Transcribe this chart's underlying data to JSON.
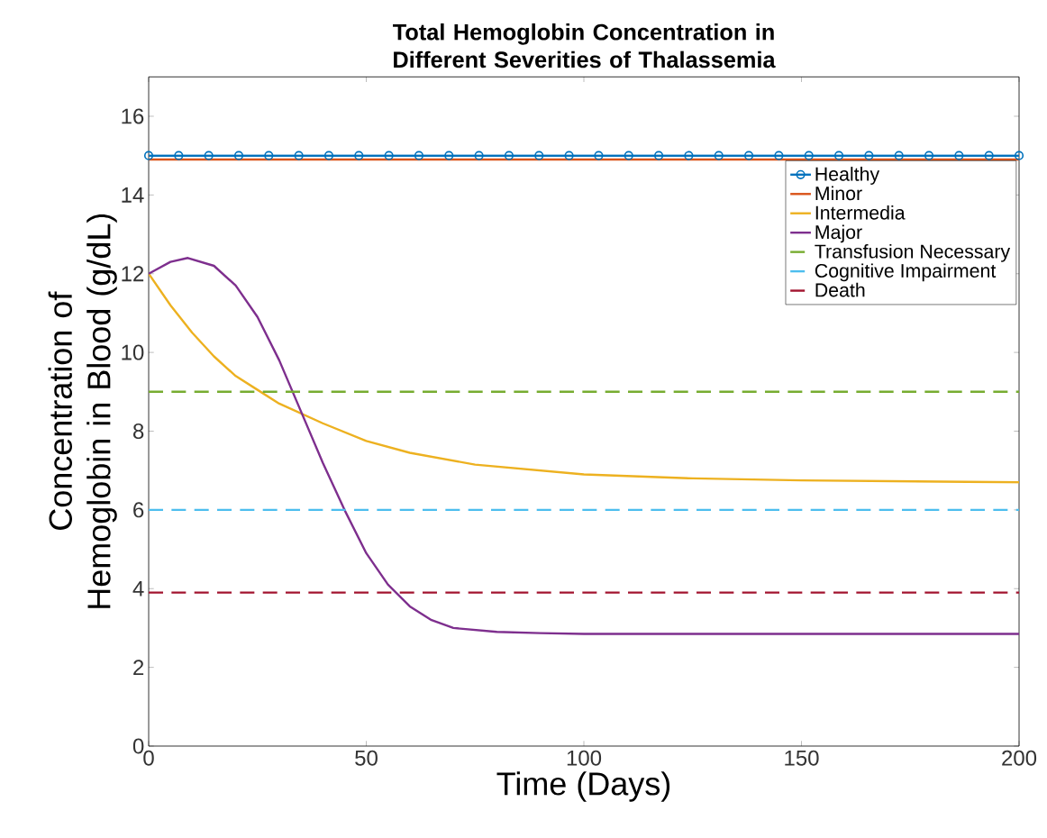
{
  "chart_data": {
    "type": "line",
    "title": "Total Hemoglobin Concentration in Different Severities of Thalassemia",
    "xlabel": "Time (Days)",
    "ylabel": "Concentration of Hemoglobin in Blood (g/dL)",
    "xlim": [
      0,
      200
    ],
    "ylim": [
      0,
      17
    ],
    "xticks": [
      0,
      50,
      100,
      150,
      200
    ],
    "yticks": [
      0,
      2,
      4,
      6,
      8,
      10,
      12,
      14,
      16
    ],
    "legend": "top right",
    "series": [
      {
        "name": "Healthy",
        "color": "#0072bd",
        "marker": "circle",
        "x": [
          0,
          6.9,
          13.8,
          20.7,
          27.6,
          34.5,
          41.4,
          48.3,
          55.2,
          62.1,
          69.0,
          75.9,
          82.8,
          89.7,
          96.6,
          103.4,
          110.3,
          117.2,
          124.1,
          131.0,
          137.9,
          144.8,
          151.7,
          158.6,
          165.5,
          172.4,
          179.3,
          186.2,
          193.1,
          200
        ],
        "values": [
          15,
          15,
          15,
          15,
          15,
          15,
          15,
          15,
          15,
          15,
          15,
          15,
          15,
          15,
          15,
          15,
          15,
          15,
          15,
          15,
          15,
          15,
          15,
          15,
          15,
          15,
          15,
          15,
          15,
          15
        ]
      },
      {
        "name": "Minor",
        "color": "#d95319",
        "x": [
          0,
          200
        ],
        "values": [
          14.9,
          14.9
        ]
      },
      {
        "name": "Intermedia",
        "color": "#edb120",
        "x": [
          0,
          5,
          10,
          15,
          20,
          25,
          30,
          40,
          50,
          60,
          75,
          100,
          125,
          150,
          200
        ],
        "values": [
          12.0,
          11.2,
          10.5,
          9.9,
          9.4,
          9.05,
          8.7,
          8.2,
          7.75,
          7.45,
          7.15,
          6.9,
          6.8,
          6.75,
          6.7
        ]
      },
      {
        "name": "Major",
        "color": "#7e2f8e",
        "x": [
          0,
          5,
          9,
          15,
          20,
          25,
          30,
          35,
          40,
          45,
          50,
          55,
          60,
          65,
          70,
          80,
          90,
          100,
          150,
          200
        ],
        "values": [
          12.0,
          12.3,
          12.4,
          12.2,
          11.7,
          10.9,
          9.8,
          8.5,
          7.2,
          6.0,
          4.9,
          4.1,
          3.55,
          3.2,
          3.0,
          2.9,
          2.87,
          2.85,
          2.85,
          2.85
        ]
      },
      {
        "name": "Transfusion Necessary",
        "color": "#77ac30",
        "line_style": "dashed",
        "x": [
          0,
          200
        ],
        "values": [
          9,
          9
        ]
      },
      {
        "name": "Cognitive Impairment",
        "color": "#4dbeee",
        "line_style": "dashed",
        "x": [
          0,
          200
        ],
        "values": [
          6,
          6
        ]
      },
      {
        "name": "Death",
        "color": "#a2142f",
        "line_style": "dashed",
        "x": [
          0,
          200
        ],
        "values": [
          3.9,
          3.9
        ]
      }
    ]
  }
}
